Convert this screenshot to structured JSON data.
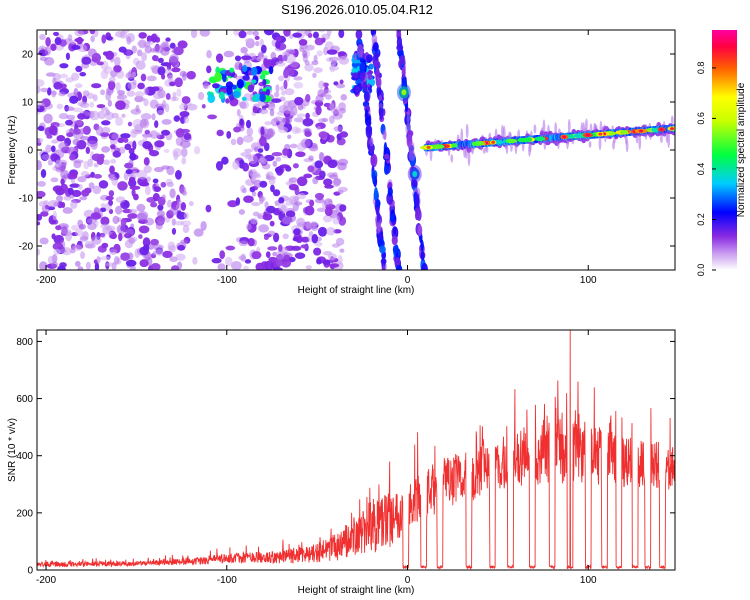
{
  "chart_data": [
    {
      "type": "heatmap",
      "title": "S196.2026.010.05.04.R12",
      "xlabel": "Height of straight line (km)",
      "ylabel": "Frequency (Hz)",
      "xlim": [
        -205,
        148
      ],
      "ylim": [
        -25,
        25
      ],
      "x_ticks": [
        -200,
        -100,
        0,
        100
      ],
      "y_ticks": [
        -20,
        -10,
        0,
        10,
        20
      ],
      "grid": false,
      "colorbar": {
        "label": "Normalized spectral amplitude",
        "range": [
          0,
          0.95
        ],
        "ticks": [
          0.0,
          0.2,
          0.4,
          0.6,
          0.8
        ]
      },
      "features": [
        {
          "kind": "scatter-noise",
          "x": [
            -205,
            -35
          ],
          "freq": [
            -25,
            25
          ],
          "amplitude": 0.1
        },
        {
          "kind": "blob-cluster",
          "x": [
            -112,
            -75
          ],
          "freq": [
            10,
            17
          ],
          "amplitude": 0.45
        },
        {
          "kind": "blob-cluster",
          "x": [
            -30,
            -20
          ],
          "freq": [
            12,
            20
          ],
          "amplitude": 0.35
        },
        {
          "kind": "streak",
          "x": [
            -22,
            8
          ],
          "freq": [
            -25,
            25
          ],
          "amplitude": 0.2
        },
        {
          "kind": "blob",
          "x": -2,
          "freq": 12,
          "amplitude": 0.45
        },
        {
          "kind": "blob",
          "x": 4,
          "freq": -5,
          "amplitude": 0.3
        },
        {
          "kind": "band",
          "x": [
            10,
            148
          ],
          "freq_start": 0.5,
          "freq_end": 4.5,
          "amplitude": 0.75
        }
      ]
    },
    {
      "type": "line",
      "xlabel": "Height of straight line (km)",
      "ylabel": "SNR (10 * v/v)",
      "xlim": [
        -205,
        148
      ],
      "ylim": [
        0,
        840
      ],
      "x_ticks": [
        -200,
        -100,
        0,
        100
      ],
      "y_ticks": [
        0,
        200,
        400,
        600,
        800
      ],
      "grid": false,
      "series_color": "#f03030",
      "profile_x": [
        -205,
        -150,
        -120,
        -100,
        -80,
        -60,
        -50,
        -40,
        -30,
        -20,
        -10,
        0,
        10,
        20,
        40,
        60,
        80,
        100,
        120,
        148
      ],
      "profile_snr_mean": [
        20,
        22,
        30,
        40,
        45,
        50,
        60,
        80,
        110,
        150,
        180,
        220,
        260,
        300,
        340,
        390,
        420,
        410,
        380,
        360
      ],
      "profile_snr_spread": [
        15,
        15,
        20,
        30,
        35,
        45,
        55,
        80,
        120,
        160,
        170,
        140,
        160,
        140,
        150,
        170,
        200,
        180,
        150,
        140
      ],
      "dropouts_x": [
        -1,
        9,
        18,
        34,
        47,
        57,
        69,
        80,
        90,
        100,
        109,
        117,
        126,
        133,
        141
      ],
      "peak": {
        "x": 90,
        "snr": 840
      }
    }
  ]
}
